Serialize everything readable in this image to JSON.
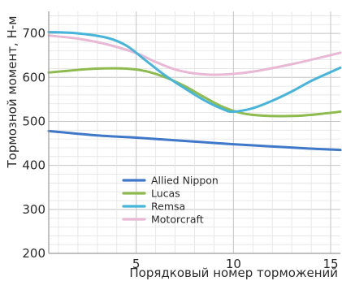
{
  "chart_data": {
    "type": "line",
    "xlabel": "Порядковый номер торможений",
    "ylabel": "Тормозной момент, Н-м",
    "xlim": [
      0.5,
      15.5
    ],
    "ylim": [
      200,
      750
    ],
    "x_ticks": [
      5,
      10,
      15
    ],
    "y_ticks": [
      200,
      300,
      400,
      500,
      600,
      700
    ],
    "grid": true,
    "legend_position": "lower-left inside",
    "series": [
      {
        "name": "Allied Nippon",
        "color": "#3f78c9",
        "points": [
          [
            0.5,
            478
          ],
          [
            3,
            468
          ],
          [
            5,
            463
          ],
          [
            7,
            457
          ],
          [
            9,
            451
          ],
          [
            10,
            448
          ],
          [
            12,
            443
          ],
          [
            14,
            438
          ],
          [
            15.5,
            435
          ]
        ]
      },
      {
        "name": "Lucas",
        "color": "#8dbb4e",
        "points": [
          [
            0.5,
            611
          ],
          [
            2,
            617
          ],
          [
            3,
            620
          ],
          [
            4.5,
            620
          ],
          [
            5.5,
            614
          ],
          [
            6.5,
            600
          ],
          [
            7.5,
            580
          ],
          [
            8.5,
            555
          ],
          [
            9.5,
            532
          ],
          [
            10.5,
            518
          ],
          [
            11.5,
            513
          ],
          [
            12.5,
            512
          ],
          [
            13.5,
            513
          ],
          [
            14.5,
            517
          ],
          [
            15.5,
            522
          ]
        ]
      },
      {
        "name": "Remsa",
        "color": "#47b5d9",
        "points": [
          [
            0.5,
            703
          ],
          [
            2,
            700
          ],
          [
            3.5,
            690
          ],
          [
            4.5,
            672
          ],
          [
            5.5,
            638
          ],
          [
            6.5,
            604
          ],
          [
            7.5,
            575
          ],
          [
            8.5,
            548
          ],
          [
            9.5,
            527
          ],
          [
            10,
            522
          ],
          [
            11,
            530
          ],
          [
            12,
            547
          ],
          [
            13,
            568
          ],
          [
            14,
            592
          ],
          [
            15,
            612
          ],
          [
            15.5,
            622
          ]
        ]
      },
      {
        "name": "Motorcraft",
        "color": "#e8b8d4",
        "points": [
          [
            0.5,
            695
          ],
          [
            2,
            688
          ],
          [
            3.5,
            675
          ],
          [
            5,
            655
          ],
          [
            6,
            635
          ],
          [
            7,
            618
          ],
          [
            8,
            609
          ],
          [
            9,
            606
          ],
          [
            10,
            608
          ],
          [
            11,
            613
          ],
          [
            12,
            621
          ],
          [
            13,
            630
          ],
          [
            14,
            640
          ],
          [
            15.5,
            656
          ]
        ]
      }
    ]
  }
}
